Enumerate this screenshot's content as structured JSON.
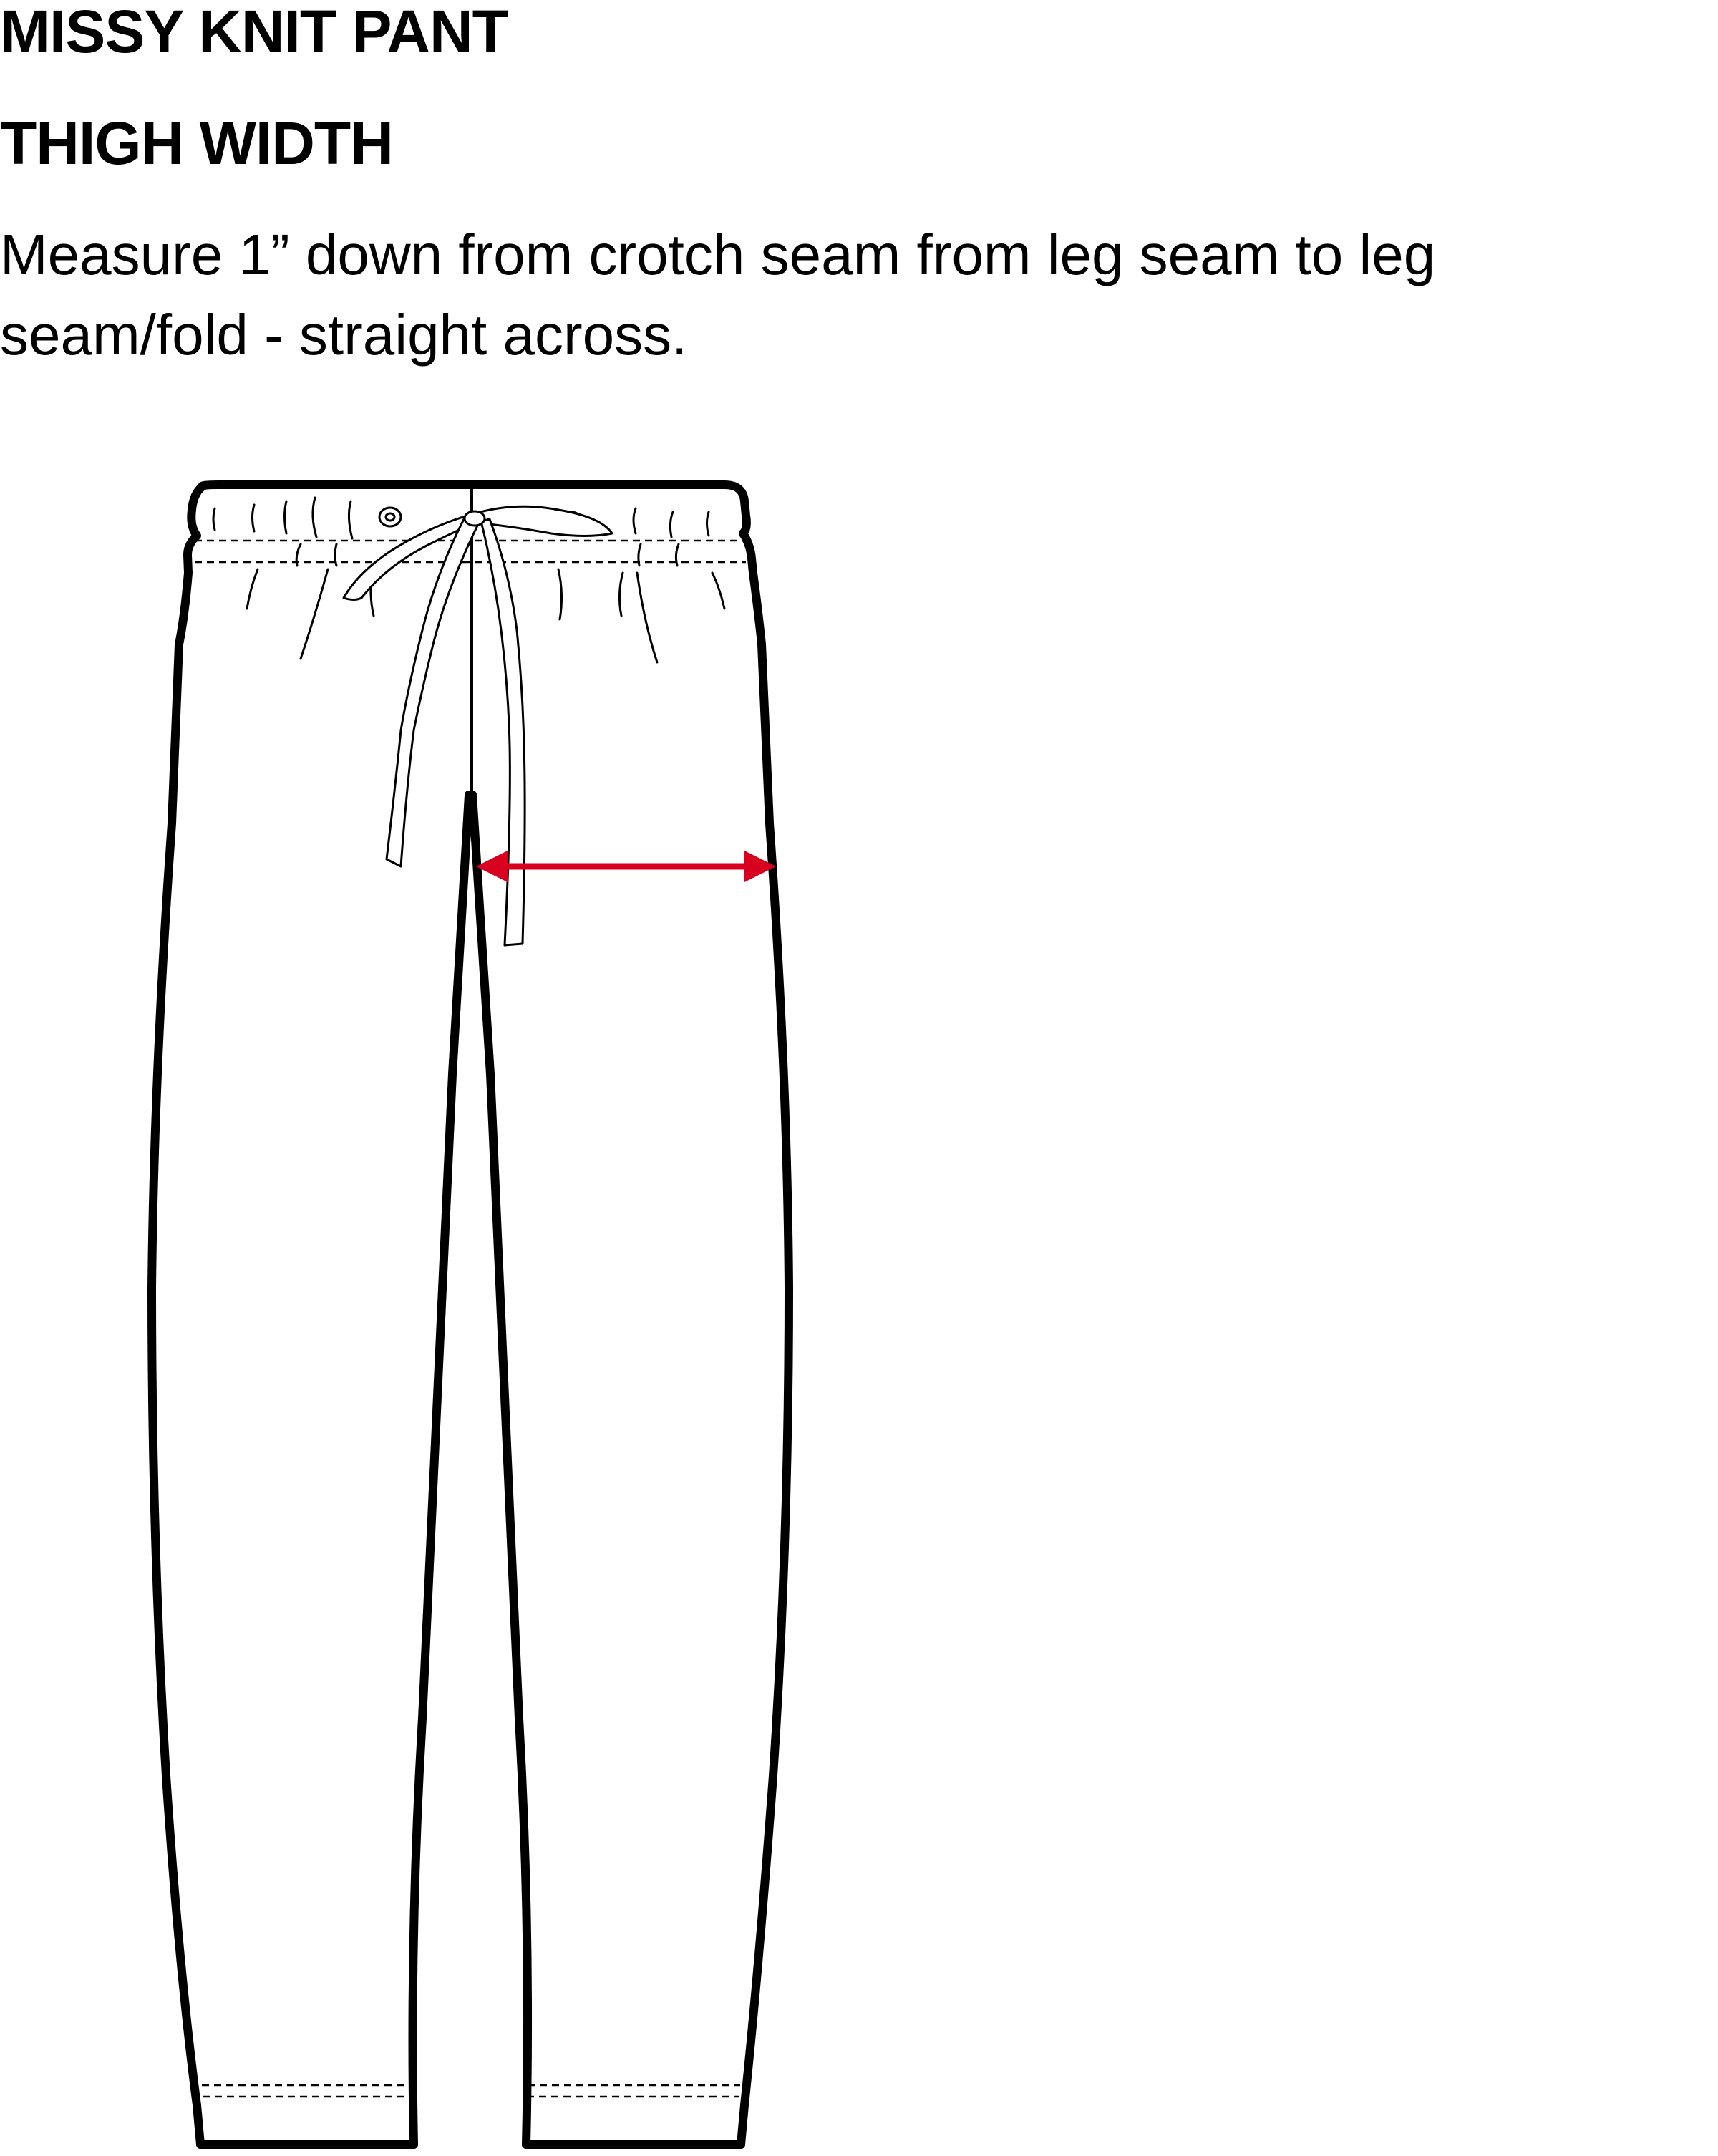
{
  "document": {
    "title": "MISSY KNIT PANT",
    "measurement_name": "THIGH WIDTH",
    "instructions": "Measure 1” down from crotch seam from leg seam to leg seam/fold - straight across."
  },
  "diagram": {
    "subject": "pant-flat-sketch",
    "measurement_arrow_color": "#d7001e",
    "line_color": "#000000"
  }
}
